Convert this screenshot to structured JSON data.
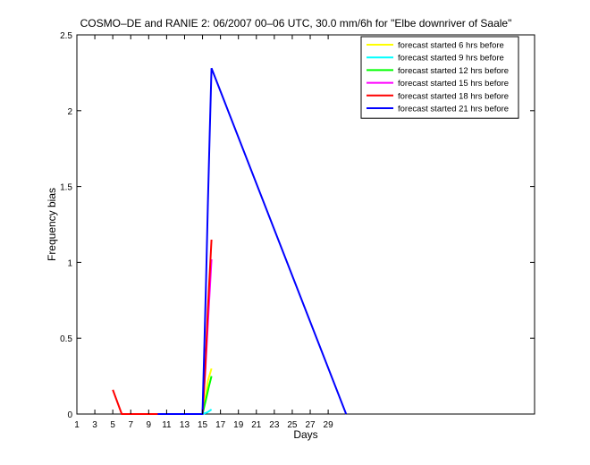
{
  "chart_data": {
    "type": "line",
    "title": "COSMO–DE and RANIE 2: 06/2007 00–06 UTC, 30.0 mm/6h for \"Elbe downriver of Saale\"",
    "xlabel": "Days",
    "ylabel": "Frequency bias",
    "xlim": [
      1,
      52
    ],
    "ylim": [
      0,
      2.5
    ],
    "xticks": [
      1,
      3,
      5,
      7,
      9,
      11,
      13,
      15,
      17,
      19,
      21,
      23,
      25,
      27,
      29
    ],
    "yticks": [
      0,
      0.5,
      1,
      1.5,
      2,
      2.5
    ],
    "ytick_labels": [
      "0",
      "0.5",
      "1",
      "1.5",
      "2",
      "2.5"
    ],
    "legend_position": "top-right",
    "grid": false,
    "series": [
      {
        "name": "forecast started 6 hrs before",
        "color": "#ffff00",
        "points": [
          [
            15.0,
            0.0
          ],
          [
            15.3,
            0.1
          ],
          [
            15.6,
            0.22
          ],
          [
            16.0,
            0.3
          ]
        ]
      },
      {
        "name": "forecast started 9 hrs before",
        "color": "#00ffff",
        "points": [
          [
            15.0,
            0.0
          ],
          [
            15.5,
            0.01
          ],
          [
            16.0,
            0.03
          ]
        ]
      },
      {
        "name": "forecast started 12 hrs before",
        "color": "#00ff00",
        "points": [
          [
            15.0,
            0.0
          ],
          [
            15.4,
            0.1
          ],
          [
            15.7,
            0.18
          ],
          [
            16.0,
            0.25
          ]
        ]
      },
      {
        "name": "forecast started 15 hrs before",
        "color": "#ff00ff",
        "points": [
          [
            15.0,
            0.0
          ],
          [
            15.3,
            0.28
          ],
          [
            15.6,
            0.6
          ],
          [
            16.0,
            1.02
          ]
        ]
      },
      {
        "name": "forecast started 18 hrs before",
        "color": "#ff0000",
        "points": [
          [
            5.0,
            0.16
          ],
          [
            6.0,
            0.0
          ],
          [
            15.0,
            0.0
          ],
          [
            15.3,
            0.3
          ],
          [
            15.6,
            0.7
          ],
          [
            16.0,
            1.15
          ]
        ]
      },
      {
        "name": "forecast started 21 hrs before",
        "color": "#0000ff",
        "points": [
          [
            10.0,
            0.0
          ],
          [
            15.0,
            0.0
          ],
          [
            15.2,
            0.45
          ],
          [
            15.4,
            0.9
          ],
          [
            15.6,
            1.4
          ],
          [
            15.8,
            1.85
          ],
          [
            16.0,
            2.28
          ],
          [
            31.0,
            0.0
          ]
        ]
      }
    ]
  }
}
